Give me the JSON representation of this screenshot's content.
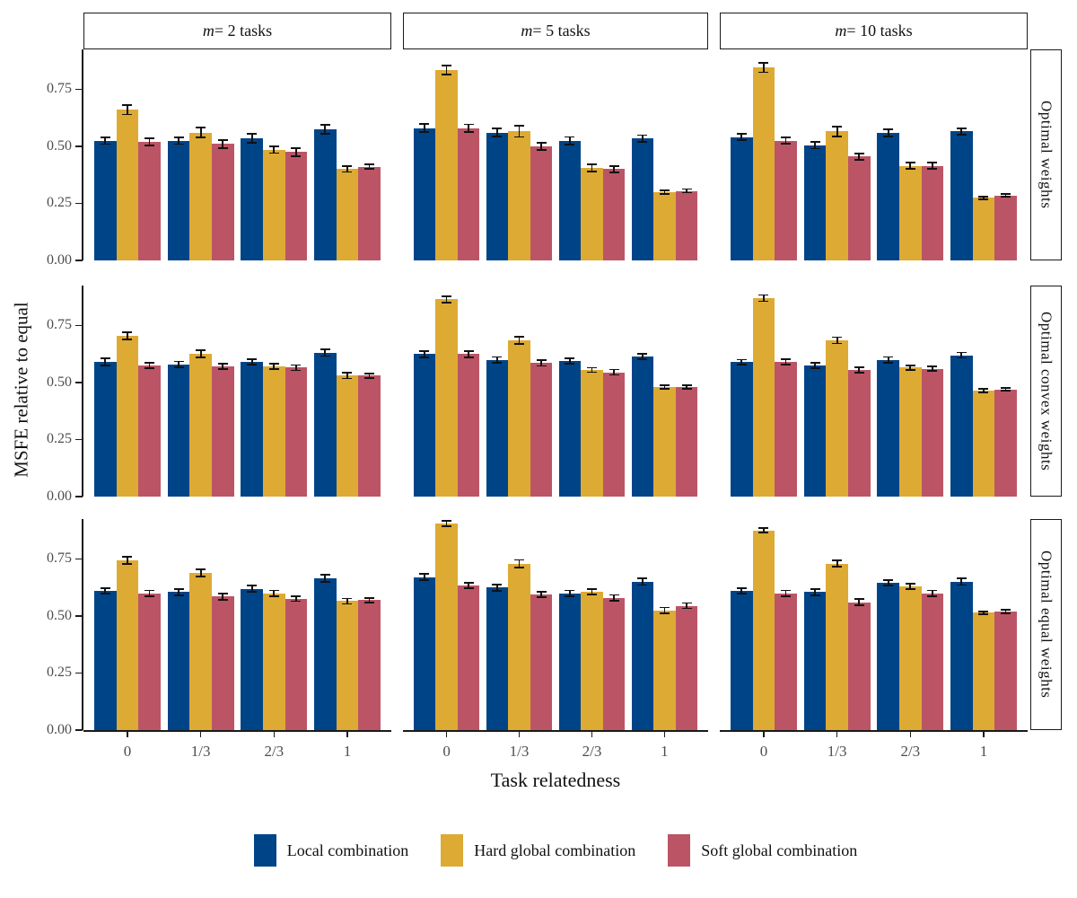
{
  "chart_data": {
    "type": "bar",
    "title": "",
    "xlabel": "Task relatedness",
    "ylabel": "MSFE relative to equal",
    "categories": [
      "0",
      "1/3",
      "2/3",
      "1"
    ],
    "y_ticks": [
      "0.00",
      "0.25",
      "0.50",
      "0.75"
    ],
    "y_tick_values": [
      0,
      0.25,
      0.5,
      0.75
    ],
    "ylim": [
      0,
      0.925
    ],
    "grid": "off",
    "legend_position": "bottom",
    "facet_cols": [
      {
        "label": "m = 2 tasks",
        "italic": "m",
        "text": " = 2 tasks"
      },
      {
        "label": "m = 5 tasks",
        "italic": "m",
        "text": " = 5 tasks"
      },
      {
        "label": "m = 10 tasks",
        "italic": "m",
        "text": " = 10 tasks"
      }
    ],
    "facet_rows": [
      "Optimal weights",
      "Optimal convex weights",
      "Optimal equal weights"
    ],
    "series_meta": [
      {
        "name": "Local combination",
        "color": "#004488"
      },
      {
        "name": "Hard global combination",
        "color": "#DDAA33"
      },
      {
        "name": "Soft global combination",
        "color": "#BB5566"
      }
    ],
    "panels": [
      {
        "facet_row": "Optimal weights",
        "facet_col": "m = 2 tasks",
        "series": [
          {
            "name": "Local combination",
            "values": [
              0.525,
              0.525,
              0.535,
              0.575
            ],
            "errors": [
              0.015,
              0.015,
              0.02,
              0.02
            ]
          },
          {
            "name": "Hard global combination",
            "values": [
              0.66,
              0.56,
              0.485,
              0.4
            ],
            "errors": [
              0.02,
              0.022,
              0.015,
              0.012
            ]
          },
          {
            "name": "Soft global combination",
            "values": [
              0.52,
              0.51,
              0.475,
              0.41
            ],
            "errors": [
              0.015,
              0.018,
              0.018,
              0.01
            ]
          }
        ]
      },
      {
        "facet_row": "Optimal weights",
        "facet_col": "m = 5 tasks",
        "series": [
          {
            "name": "Local combination",
            "values": [
              0.58,
              0.56,
              0.525,
              0.535
            ],
            "errors": [
              0.018,
              0.018,
              0.016,
              0.014
            ]
          },
          {
            "name": "Hard global combination",
            "values": [
              0.835,
              0.565,
              0.405,
              0.3
            ],
            "errors": [
              0.02,
              0.024,
              0.015,
              0.008
            ]
          },
          {
            "name": "Soft global combination",
            "values": [
              0.58,
              0.5,
              0.4,
              0.305
            ],
            "errors": [
              0.016,
              0.016,
              0.014,
              0.008
            ]
          }
        ]
      },
      {
        "facet_row": "Optimal weights",
        "facet_col": "m = 10 tasks",
        "series": [
          {
            "name": "Local combination",
            "values": [
              0.54,
              0.505,
              0.56,
              0.565
            ],
            "errors": [
              0.014,
              0.015,
              0.016,
              0.014
            ]
          },
          {
            "name": "Hard global combination",
            "values": [
              0.845,
              0.565,
              0.415,
              0.275
            ],
            "errors": [
              0.02,
              0.022,
              0.014,
              0.006
            ]
          },
          {
            "name": "Soft global combination",
            "values": [
              0.525,
              0.455,
              0.415,
              0.285
            ],
            "errors": [
              0.014,
              0.014,
              0.014,
              0.007
            ]
          }
        ]
      },
      {
        "facet_row": "Optimal convex weights",
        "facet_col": "m = 2 tasks",
        "series": [
          {
            "name": "Local combination",
            "values": [
              0.59,
              0.58,
              0.59,
              0.63
            ],
            "errors": [
              0.016,
              0.012,
              0.012,
              0.014
            ]
          },
          {
            "name": "Hard global combination",
            "values": [
              0.705,
              0.625,
              0.57,
              0.53
            ],
            "errors": [
              0.016,
              0.016,
              0.012,
              0.012
            ]
          },
          {
            "name": "Soft global combination",
            "values": [
              0.575,
              0.57,
              0.565,
              0.53
            ],
            "errors": [
              0.012,
              0.012,
              0.012,
              0.01
            ]
          }
        ]
      },
      {
        "facet_row": "Optimal convex weights",
        "facet_col": "m = 5 tasks",
        "series": [
          {
            "name": "Local combination",
            "values": [
              0.625,
              0.6,
              0.595,
              0.615
            ],
            "errors": [
              0.014,
              0.012,
              0.012,
              0.012
            ]
          },
          {
            "name": "Hard global combination",
            "values": [
              0.865,
              0.685,
              0.555,
              0.48
            ],
            "errors": [
              0.014,
              0.016,
              0.01,
              0.008
            ]
          },
          {
            "name": "Soft global combination",
            "values": [
              0.625,
              0.585,
              0.545,
              0.48
            ],
            "errors": [
              0.014,
              0.012,
              0.012,
              0.008
            ]
          }
        ]
      },
      {
        "facet_row": "Optimal convex weights",
        "facet_col": "m = 10 tasks",
        "series": [
          {
            "name": "Local combination",
            "values": [
              0.59,
              0.575,
              0.6,
              0.62
            ],
            "errors": [
              0.01,
              0.012,
              0.012,
              0.012
            ]
          },
          {
            "name": "Hard global combination",
            "values": [
              0.87,
              0.685,
              0.565,
              0.465
            ],
            "errors": [
              0.014,
              0.014,
              0.01,
              0.007
            ]
          },
          {
            "name": "Soft global combination",
            "values": [
              0.59,
              0.555,
              0.56,
              0.47
            ],
            "errors": [
              0.012,
              0.012,
              0.01,
              0.007
            ]
          }
        ]
      },
      {
        "facet_row": "Optimal equal weights",
        "facet_col": "m = 2 tasks",
        "series": [
          {
            "name": "Local combination",
            "values": [
              0.61,
              0.605,
              0.62,
              0.665
            ],
            "errors": [
              0.012,
              0.014,
              0.014,
              0.016
            ]
          },
          {
            "name": "Hard global combination",
            "values": [
              0.745,
              0.69,
              0.6,
              0.565
            ],
            "errors": [
              0.016,
              0.016,
              0.012,
              0.012
            ]
          },
          {
            "name": "Soft global combination",
            "values": [
              0.6,
              0.585,
              0.575,
              0.57
            ],
            "errors": [
              0.012,
              0.014,
              0.01,
              0.01
            ]
          }
        ]
      },
      {
        "facet_row": "Optimal equal weights",
        "facet_col": "m = 5 tasks",
        "series": [
          {
            "name": "Local combination",
            "values": [
              0.67,
              0.625,
              0.6,
              0.65
            ],
            "errors": [
              0.014,
              0.014,
              0.012,
              0.014
            ]
          },
          {
            "name": "Hard global combination",
            "values": [
              0.905,
              0.73,
              0.605,
              0.525
            ],
            "errors": [
              0.012,
              0.016,
              0.012,
              0.012
            ]
          },
          {
            "name": "Soft global combination",
            "values": [
              0.635,
              0.595,
              0.58,
              0.545
            ],
            "errors": [
              0.012,
              0.012,
              0.012,
              0.012
            ]
          }
        ]
      },
      {
        "facet_row": "Optimal equal weights",
        "facet_col": "m = 10 tasks",
        "series": [
          {
            "name": "Local combination",
            "values": [
              0.61,
              0.605,
              0.645,
              0.65
            ],
            "errors": [
              0.012,
              0.014,
              0.012,
              0.014
            ]
          },
          {
            "name": "Hard global combination",
            "values": [
              0.875,
              0.73,
              0.63,
              0.515
            ],
            "errors": [
              0.01,
              0.014,
              0.012,
              0.006
            ]
          },
          {
            "name": "Soft global combination",
            "values": [
              0.6,
              0.56,
              0.6,
              0.52
            ],
            "errors": [
              0.012,
              0.014,
              0.012,
              0.007
            ]
          }
        ]
      }
    ]
  }
}
